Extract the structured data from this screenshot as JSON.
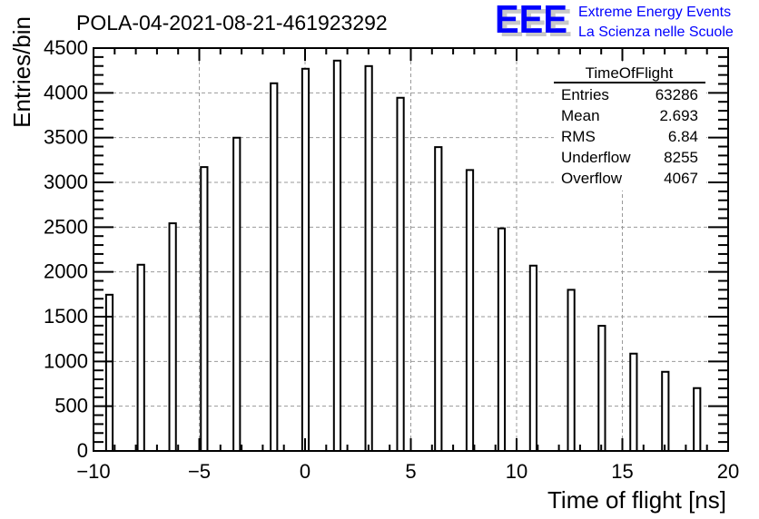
{
  "header": {
    "logo_text": "EEE",
    "org_line1": "Extreme Energy Events",
    "org_line2": "La Scienza nelle Scuole"
  },
  "colors": {
    "logo": "#0000ff",
    "logo_shadow": "#c8c8c8",
    "bars": "#000000",
    "grid": "#999999"
  },
  "stats": {
    "title": "TimeOfFlight",
    "rows": [
      {
        "label": "Entries",
        "value": "63286"
      },
      {
        "label": "Mean",
        "value": "2.693"
      },
      {
        "label": "RMS",
        "value": "6.84"
      },
      {
        "label": "Underflow",
        "value": "8255"
      },
      {
        "label": "Overflow",
        "value": "4067"
      }
    ]
  },
  "chart_data": {
    "type": "bar",
    "title": "POLA-04-2021-08-21-461923292",
    "xlabel": "Time of flight [ns]",
    "ylabel": "Entries/bin",
    "xlim": [
      -10,
      20
    ],
    "ylim": [
      0,
      4500
    ],
    "grid": true,
    "bin_width": 0.31,
    "x": [
      -9.25,
      -7.76,
      -6.26,
      -4.77,
      -3.23,
      -1.47,
      0.02,
      1.52,
      3.01,
      4.51,
      6.3,
      7.79,
      9.29,
      10.79,
      12.58,
      14.03,
      15.53,
      17.03,
      18.53
    ],
    "values": [
      1745,
      2080,
      2543,
      3171,
      3499,
      4107,
      4269,
      4360,
      4299,
      3945,
      3394,
      3138,
      2486,
      2070,
      1800,
      1398,
      1087,
      884,
      702
    ],
    "xticks": [
      "−10",
      "−5",
      "0",
      "5",
      "10",
      "15",
      "20"
    ],
    "yticks": [
      "0",
      "500",
      "1000",
      "1500",
      "2000",
      "2500",
      "3000",
      "3500",
      "4000",
      "4500"
    ]
  }
}
